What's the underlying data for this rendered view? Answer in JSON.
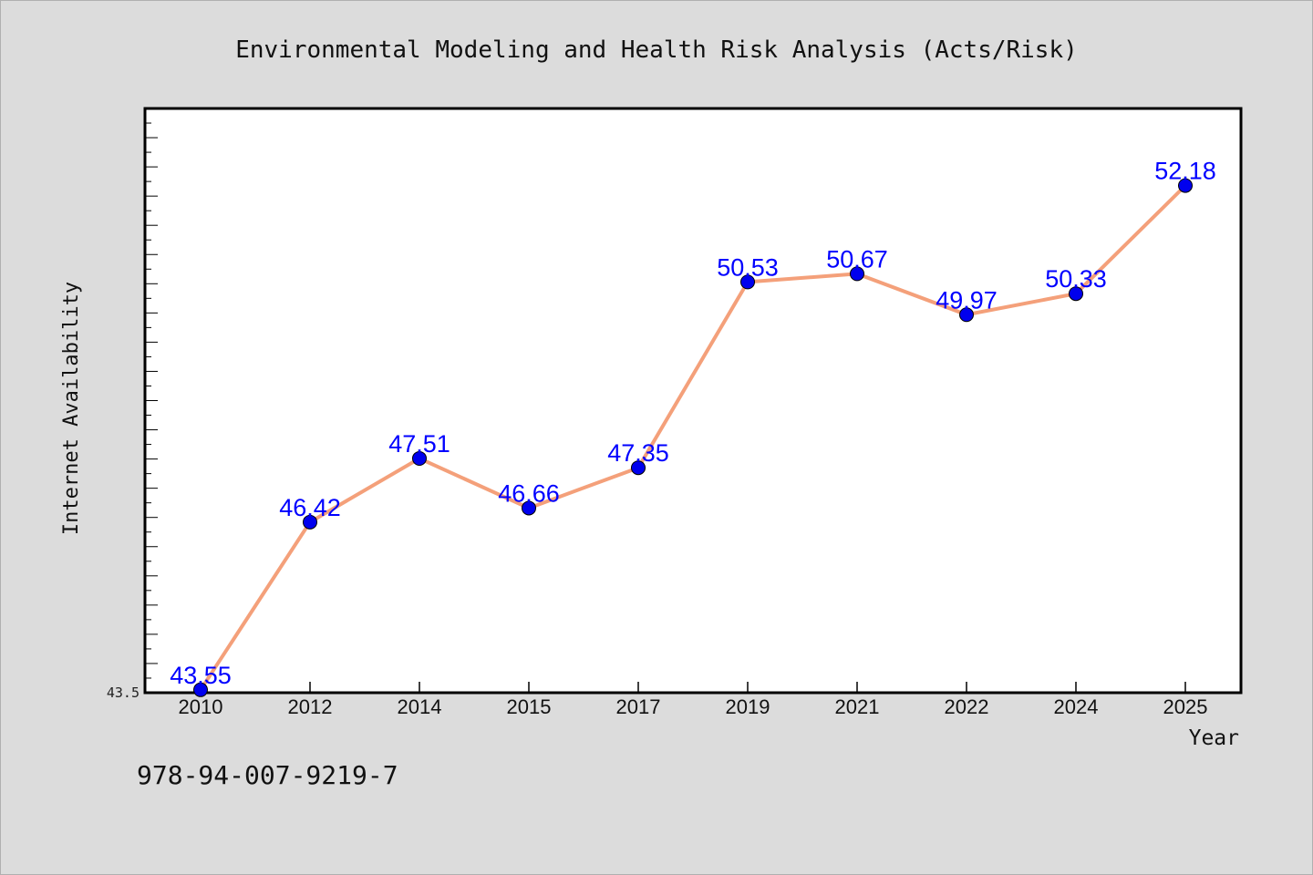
{
  "chart_data": {
    "type": "line",
    "title": "Environmental Modeling and Health Risk Analysis (Acts/Risk)",
    "xlabel": "Year",
    "ylabel": "Internet Availability",
    "categories": [
      "2010",
      "2012",
      "2014",
      "2015",
      "2017",
      "2019",
      "2021",
      "2022",
      "2024",
      "2025"
    ],
    "series": [
      {
        "values": [
          43.55,
          46.42,
          47.51,
          46.66,
          47.35,
          50.53,
          50.67,
          49.97,
          50.33,
          52.18
        ],
        "labels": [
          "43.55",
          "46.42",
          "47.51",
          "46.66",
          "47.35",
          "50.53",
          "50.67",
          "49.97",
          "50.33",
          "52.18"
        ]
      }
    ],
    "ylim": [
      43.5,
      53.5
    ],
    "y_tick_label": "43.5",
    "grid": false,
    "line_color": "#f4a07a",
    "marker_color": "#0000ee",
    "label_color": "#0000ff"
  },
  "footer": {
    "isbn": "978-94-007-9219-7"
  }
}
